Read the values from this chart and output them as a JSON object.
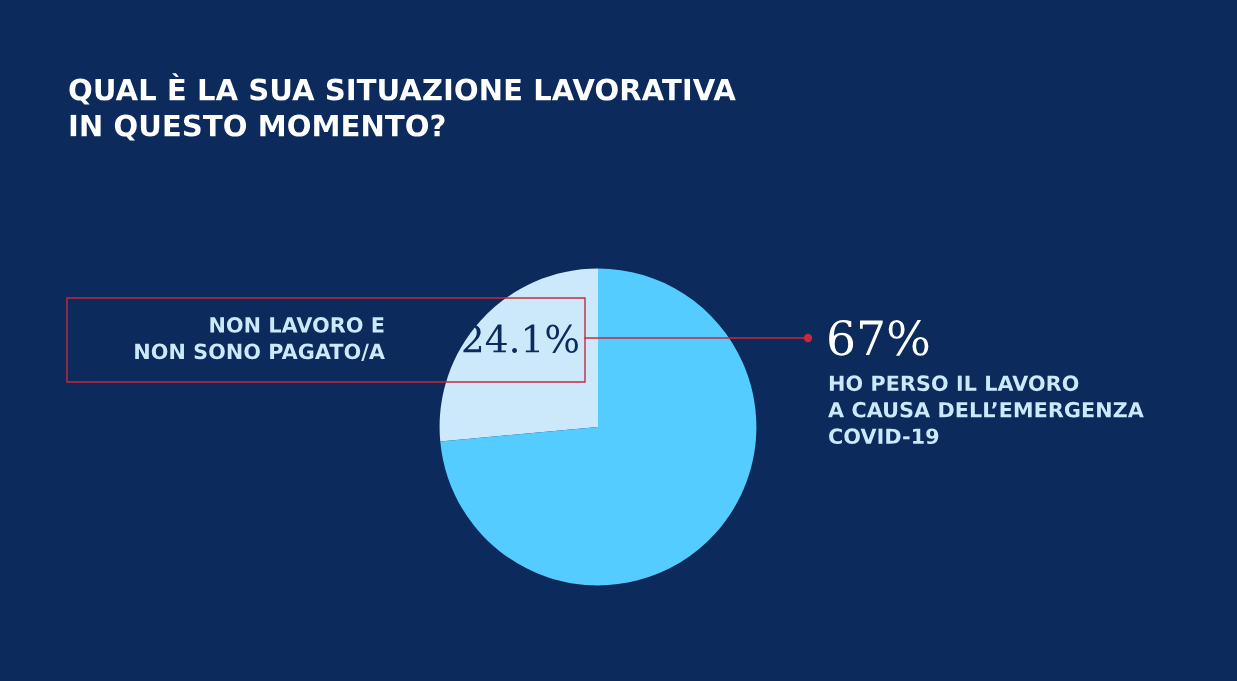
{
  "chart_data": {
    "type": "pie",
    "title": "QUAL È LA SUA SITUAZIONE LAVORATIVA\nIN QUESTO MOMENTO?",
    "categories": [
      "NON LAVORO E\nNON SONO PAGATO/A",
      "HO PERSO IL LAVORO\nA CAUSA DELL’EMERGENZA\nCOVID-19"
    ],
    "values": [
      24.1,
      67
    ],
    "colors": [
      "#cce9fb",
      "#55ccff"
    ],
    "value_labels": [
      "24.1%",
      "67%"
    ],
    "legend": false
  }
}
